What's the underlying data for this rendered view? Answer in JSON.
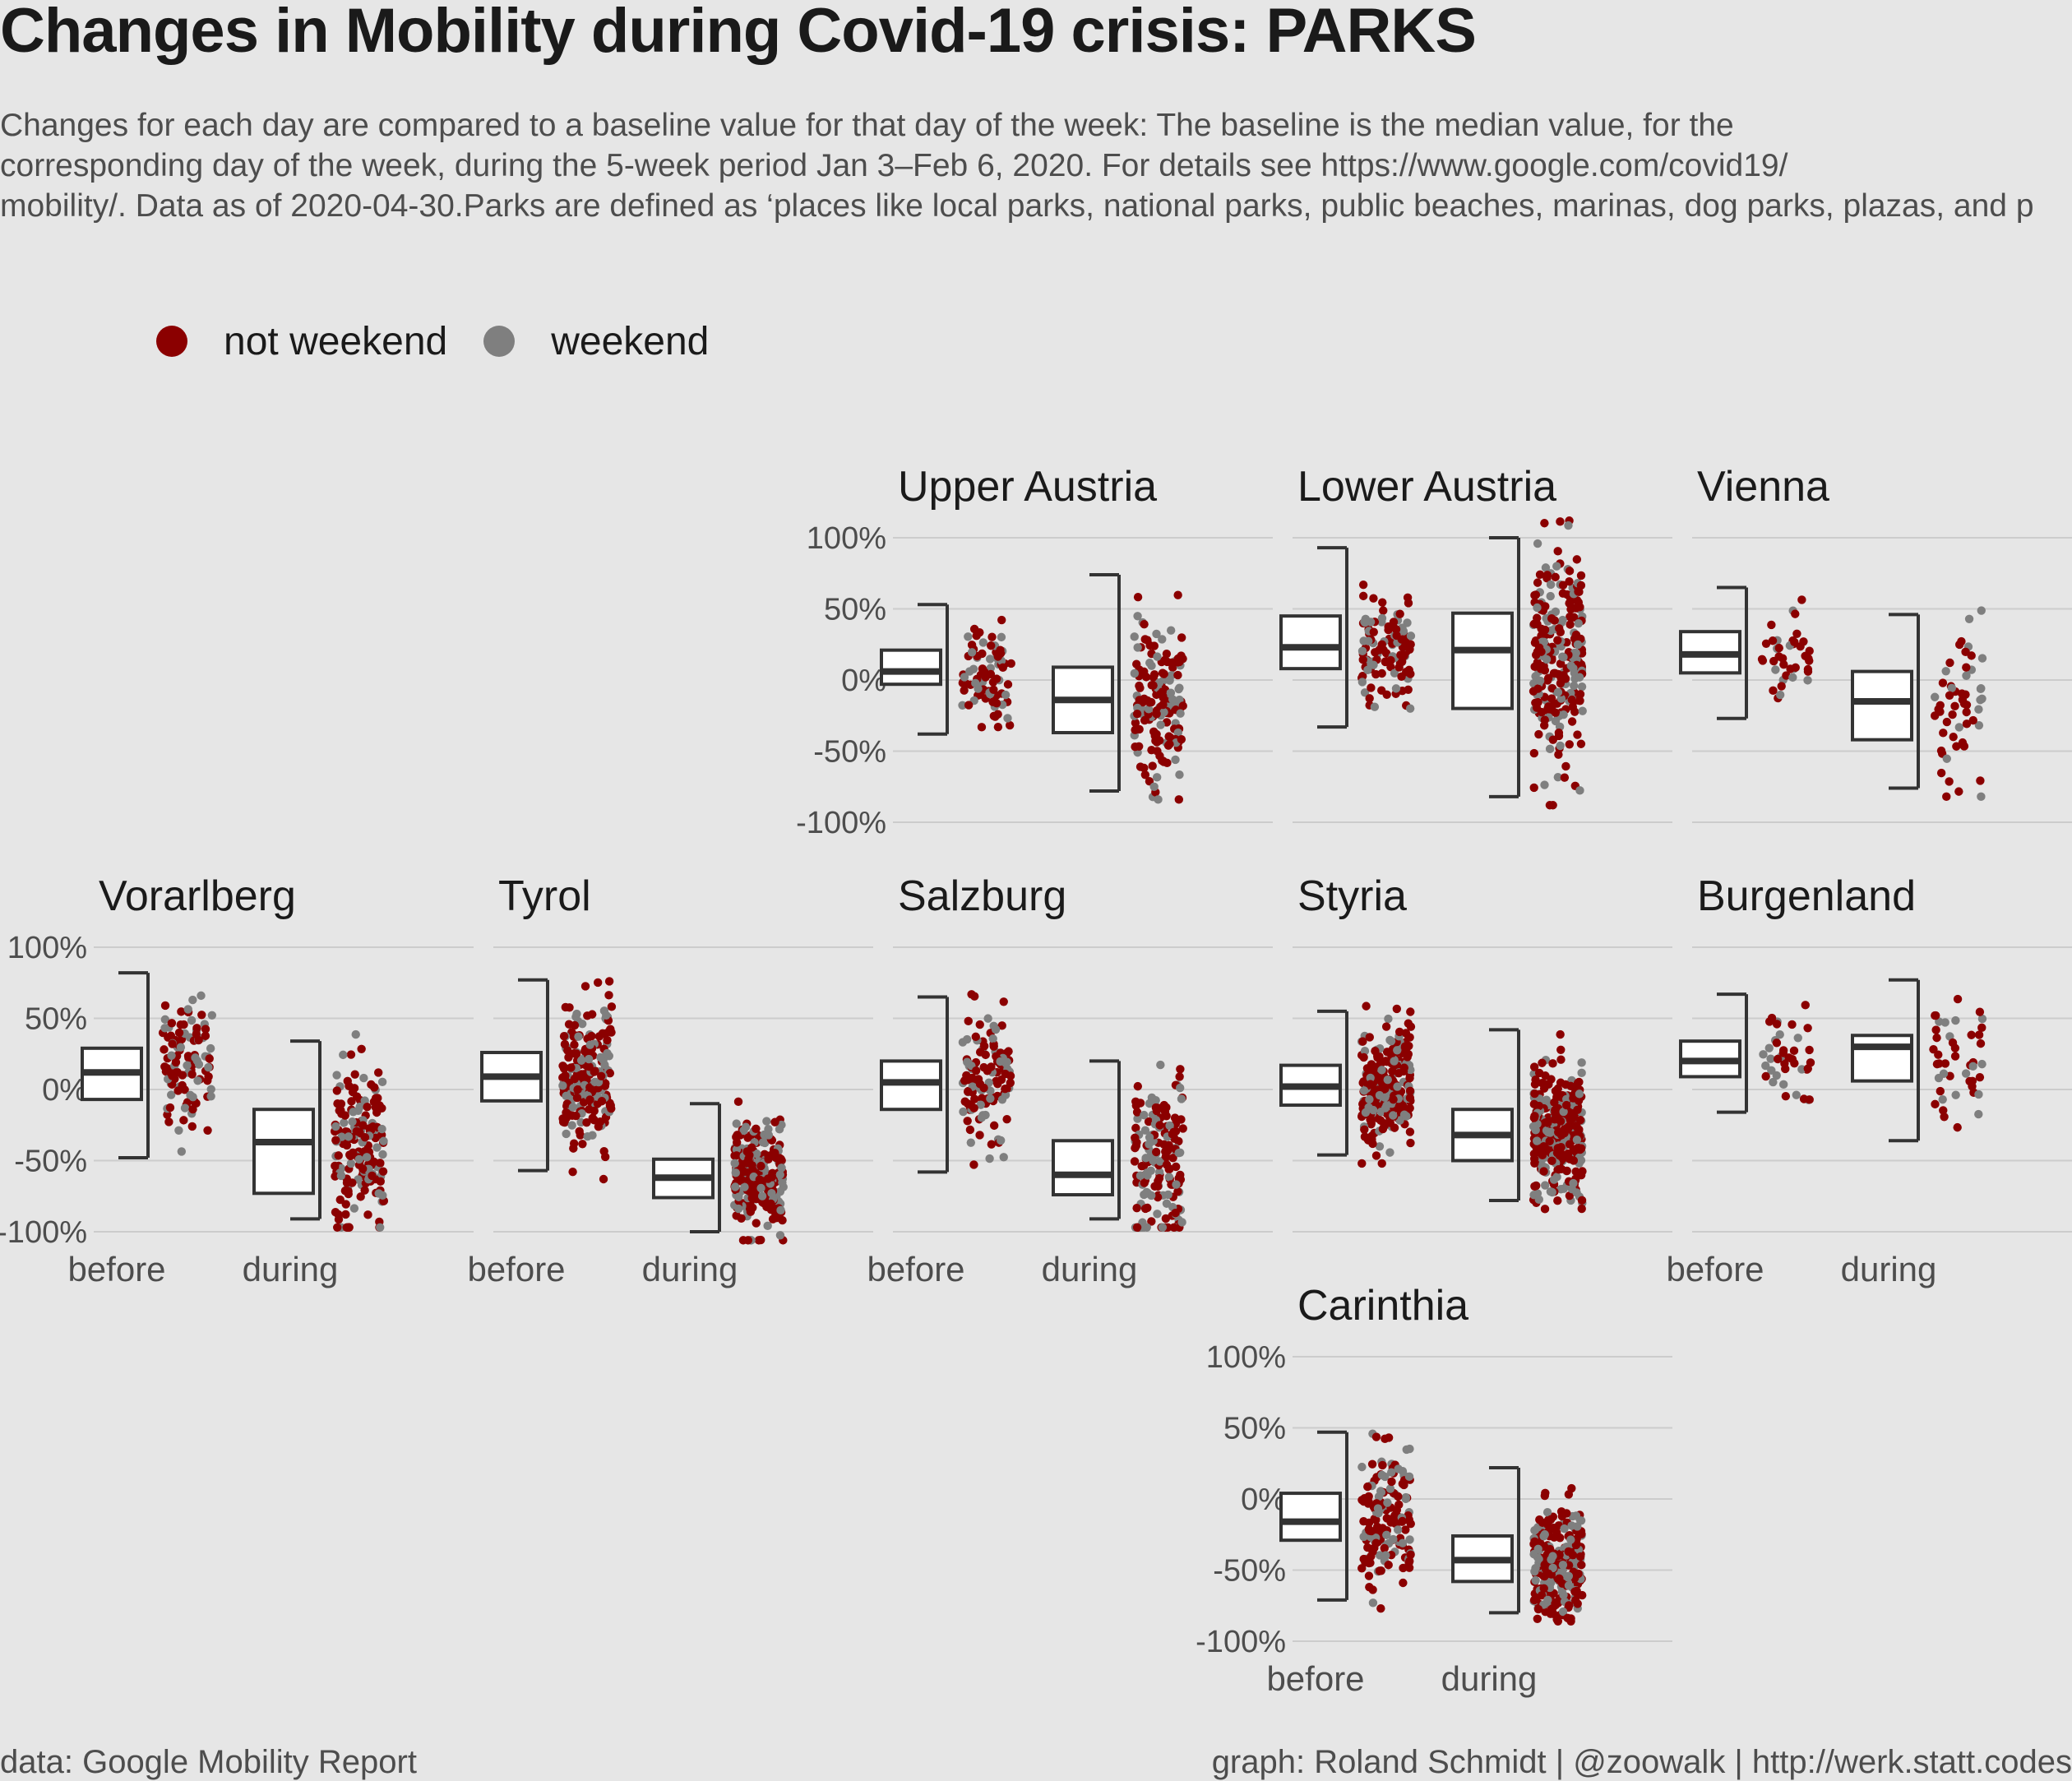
{
  "title": "Changes in Mobility during Covid-19 crisis: PARKS",
  "subtitle_lines": [
    "Changes for each day are compared to a baseline value for that day of the week: The baseline is the median value, for the",
    "corresponding day of the week, during the 5-week period Jan 3–Feb 6, 2020. For details see https://www.google.com/covid19/",
    "mobility/. Data as of 2020-04-30.Parks are defined as ‘places like local parks, national parks, public beaches, marinas, dog parks, plazas, and p"
  ],
  "legend": [
    {
      "label": "not weekend",
      "color": "#8b0000"
    },
    {
      "label": "weekend",
      "color": "#7f7f7f"
    }
  ],
  "caption_left": "data: Google Mobility Report",
  "caption_right": "graph: Roland Schmidt | @zoowalk | http://werk.statt.codes",
  "colors": {
    "not_weekend": "#8b0000",
    "weekend": "#7f7f7f",
    "box_fill": "#ffffff",
    "box_line": "#333333",
    "grid": "#cccccc"
  },
  "chart_data": {
    "type": "box+jitter",
    "title": "Changes in Mobility during Covid-19 crisis: PARKS",
    "y_ticks": [
      "100%",
      "50%",
      "0%",
      "-50%",
      "-100%"
    ],
    "ylim": [
      -100,
      100
    ],
    "categories": [
      "before",
      "during"
    ],
    "grid": true,
    "legend_position": "top-left",
    "series": [
      "not weekend",
      "weekend"
    ],
    "panels": [
      {
        "name": "Upper Austria",
        "row": 0,
        "col": 2,
        "show_y": true,
        "show_x": false,
        "groups": [
          {
            "category": "before",
            "whisker_low": -38,
            "q1": -3,
            "median": 6,
            "q3": 21,
            "whisker_high": 53,
            "n": 80,
            "center": 4,
            "spread": 18
          },
          {
            "category": "during",
            "whisker_low": -78,
            "q1": -37,
            "median": -14,
            "q3": 9,
            "whisker_high": 74,
            "n": 170,
            "center": -18,
            "spread": 28
          }
        ]
      },
      {
        "name": "Lower Austria",
        "row": 0,
        "col": 3,
        "show_y": false,
        "show_x": false,
        "groups": [
          {
            "category": "before",
            "whisker_low": -33,
            "q1": 8,
            "median": 23,
            "q3": 45,
            "whisker_high": 93,
            "n": 110,
            "center": 22,
            "spread": 20
          },
          {
            "category": "during",
            "whisker_low": -82,
            "q1": -20,
            "median": 21,
            "q3": 47,
            "whisker_high": 100,
            "n": 260,
            "center": 15,
            "spread": 40
          }
        ]
      },
      {
        "name": "Vienna",
        "row": 0,
        "col": 4,
        "show_y": false,
        "show_x": false,
        "groups": [
          {
            "category": "before",
            "whisker_low": -27,
            "q1": 5,
            "median": 18,
            "q3": 34,
            "whisker_high": 65,
            "n": 40,
            "center": 18,
            "spread": 18
          },
          {
            "category": "during",
            "whisker_low": -76,
            "q1": -42,
            "median": -15,
            "q3": 6,
            "whisker_high": 46,
            "n": 55,
            "center": -18,
            "spread": 28
          }
        ]
      },
      {
        "name": "Vorarlberg",
        "row": 1,
        "col": 0,
        "show_y": true,
        "show_x": true,
        "groups": [
          {
            "category": "before",
            "whisker_low": -48,
            "q1": -7,
            "median": 12,
            "q3": 29,
            "whisker_high": 82,
            "n": 110,
            "center": 14,
            "spread": 22
          },
          {
            "category": "during",
            "whisker_low": -91,
            "q1": -73,
            "median": -37,
            "q3": -14,
            "whisker_high": 34,
            "n": 190,
            "center": -40,
            "spread": 30
          }
        ]
      },
      {
        "name": "Tyrol",
        "row": 1,
        "col": 1,
        "show_y": false,
        "show_x": true,
        "groups": [
          {
            "category": "before",
            "whisker_low": -57,
            "q1": -8,
            "median": 9,
            "q3": 26,
            "whisker_high": 77,
            "n": 220,
            "center": 10,
            "spread": 24
          },
          {
            "category": "during",
            "whisker_low": -100,
            "q1": -76,
            "median": -62,
            "q3": -49,
            "whisker_high": -10,
            "n": 260,
            "center": -62,
            "spread": 18
          }
        ]
      },
      {
        "name": "Salzburg",
        "row": 1,
        "col": 2,
        "show_y": false,
        "show_x": true,
        "groups": [
          {
            "category": "before",
            "whisker_low": -58,
            "q1": -14,
            "median": 5,
            "q3": 20,
            "whisker_high": 65,
            "n": 120,
            "center": 4,
            "spread": 22
          },
          {
            "category": "during",
            "whisker_low": -91,
            "q1": -74,
            "median": -60,
            "q3": -36,
            "whisker_high": 20,
            "n": 170,
            "center": -50,
            "spread": 30
          }
        ]
      },
      {
        "name": "Styria",
        "row": 1,
        "col": 3,
        "show_y": false,
        "show_x": false,
        "groups": [
          {
            "category": "before",
            "whisker_low": -46,
            "q1": -11,
            "median": 2,
            "q3": 17,
            "whisker_high": 55,
            "n": 260,
            "center": 2,
            "spread": 20
          },
          {
            "category": "during",
            "whisker_low": -78,
            "q1": -50,
            "median": -32,
            "q3": -14,
            "whisker_high": 42,
            "n": 320,
            "center": -34,
            "spread": 22
          }
        ]
      },
      {
        "name": "Burgenland",
        "row": 1,
        "col": 4,
        "show_y": false,
        "show_x": true,
        "groups": [
          {
            "category": "before",
            "whisker_low": -16,
            "q1": 9,
            "median": 20,
            "q3": 34,
            "whisker_high": 67,
            "n": 40,
            "center": 20,
            "spread": 18
          },
          {
            "category": "during",
            "whisker_low": -36,
            "q1": 6,
            "median": 30,
            "q3": 38,
            "whisker_high": 77,
            "n": 45,
            "center": 26,
            "spread": 24
          }
        ]
      },
      {
        "name": "Carinthia",
        "row": 2,
        "col": 3,
        "show_y": true,
        "show_x": true,
        "groups": [
          {
            "category": "before",
            "whisker_low": -71,
            "q1": -29,
            "median": -16,
            "q3": 4,
            "whisker_high": 47,
            "n": 160,
            "center": -16,
            "spread": 24
          },
          {
            "category": "during",
            "whisker_low": -80,
            "q1": -58,
            "median": -43,
            "q3": -26,
            "whisker_high": 22,
            "n": 240,
            "center": -44,
            "spread": 20
          }
        ]
      }
    ]
  }
}
